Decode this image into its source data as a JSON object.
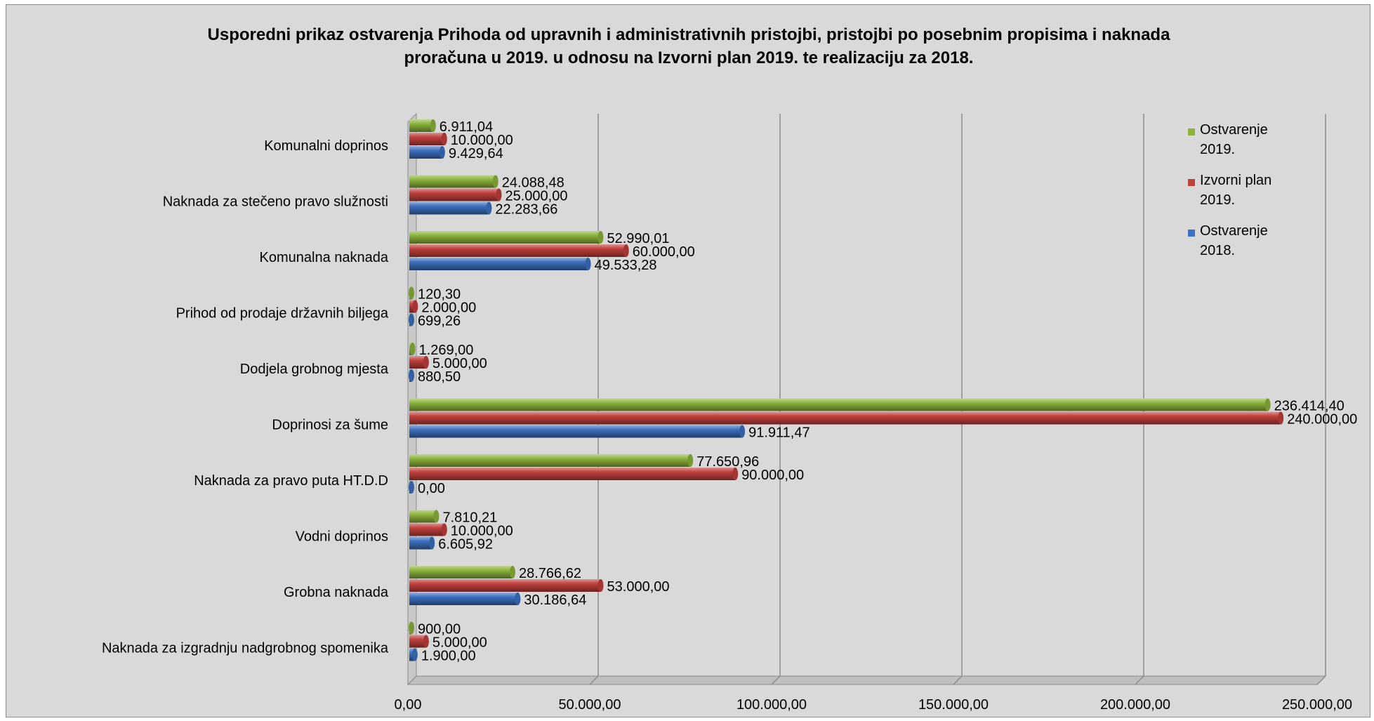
{
  "chart_data": {
    "type": "bar",
    "orientation": "horizontal",
    "title_lines": [
      "Usporedni prikaz ostvarenja Prihoda od upravnih i administrativnih pristojbi, pristojbi po posebnim propisima i naknada",
      "proračuna u 2019. u odnosu na Izvorni plan 2019. te realizaciju za 2018."
    ],
    "categories": [
      "Komunalni doprinos",
      "Naknada za stečeno pravo služnosti",
      "Komunalna naknada",
      "Prihod od prodaje državnih biljega",
      "Dodjela grobnog mjesta",
      "Doprinosi za šume",
      "Naknada za pravo puta HT.D.D",
      "Vodni doprinos",
      "Grobna naknada",
      "Naknada za izgradnju nadgrobnog spomenika"
    ],
    "series": [
      {
        "name_lines": [
          "Ostvarenje",
          "2019."
        ],
        "color": "#8cb43c",
        "values": [
          6911.04,
          24088.48,
          52990.01,
          120.3,
          1269.0,
          236414.4,
          77650.96,
          7810.21,
          28766.62,
          900.0
        ],
        "labels": [
          "6.911,04",
          "24.088,48",
          "52.990,01",
          "120,30",
          "1.269,00",
          "236.414,40",
          "77.650,96",
          "7.810,21",
          "28.766,62",
          "900,00"
        ]
      },
      {
        "name_lines": [
          "Izvorni plan",
          "2019."
        ],
        "color": "#c0403c",
        "values": [
          10000,
          25000,
          60000,
          2000,
          5000,
          240000,
          90000,
          10000,
          53000,
          5000
        ],
        "labels": [
          "10.000,00",
          "25.000,00",
          "60.000,00",
          "2.000,00",
          "5.000,00",
          "240.000,00",
          "90.000,00",
          "10.000,00",
          "53.000,00",
          "5.000,00"
        ]
      },
      {
        "name_lines": [
          "Ostvarenje",
          "2018."
        ],
        "color": "#3c70c0",
        "values": [
          9429.64,
          22283.66,
          49533.28,
          699.26,
          880.5,
          91911.47,
          0.0,
          6605.92,
          30186.64,
          1900.0
        ],
        "labels": [
          "9.429,64",
          "22.283,66",
          "49.533,28",
          "699,26",
          "880,50",
          "91.911,47",
          "0,00",
          "6.605,92",
          "30.186,64",
          "1.900,00"
        ]
      }
    ],
    "xlim": [
      0,
      250000
    ],
    "x_ticks": [
      0,
      50000,
      100000,
      150000,
      200000,
      250000
    ],
    "x_tick_labels": [
      "0,00",
      "50.000,00",
      "100.000,00",
      "150.000,00",
      "200.000,00",
      "250.000,00"
    ],
    "grid": true,
    "legend_position": "top-right"
  }
}
